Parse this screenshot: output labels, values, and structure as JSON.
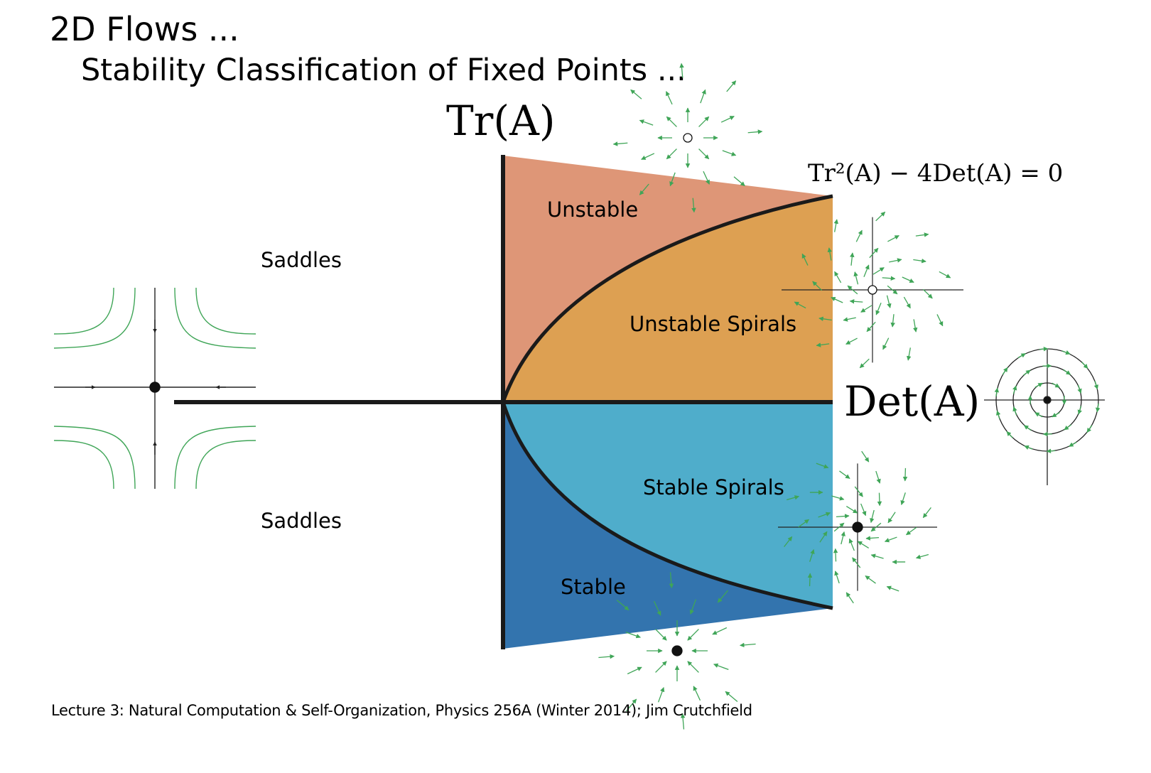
{
  "slide": {
    "title": "2D Flows ...",
    "subtitle": "Stability Classification of Fixed Points ...",
    "footer": "Lecture 3: Natural Computation & Self-Organization, Physics 256A (Winter 2014); Jim Crutchfield"
  },
  "axes": {
    "y_label": "Tr(A)",
    "x_label": "Det(A)",
    "parabola_label": "Tr²(A) − 4Det(A) = 0"
  },
  "regions": {
    "saddles_upper": "Saddles",
    "saddles_lower": "Saddles",
    "unstable": "Unstable",
    "unstable_spirals": "Unstable Spirals",
    "stable_spirals": "Stable Spirals",
    "stable": "Stable"
  },
  "colors": {
    "unstable": "#DE9677",
    "unstable_spirals": "#DDA052",
    "stable_spirals": "#4FADCB",
    "stable": "#3374AE",
    "flow_arrows": "#3FA557",
    "axis": "#1a1a1a"
  },
  "icons": {
    "unstable_node": "source-node-phase-portrait",
    "unstable_spiral": "source-spiral-phase-portrait",
    "center": "center-phase-portrait",
    "stable_spiral": "sink-spiral-phase-portrait",
    "stable_node": "sink-node-phase-portrait",
    "saddle": "saddle-phase-portrait"
  }
}
